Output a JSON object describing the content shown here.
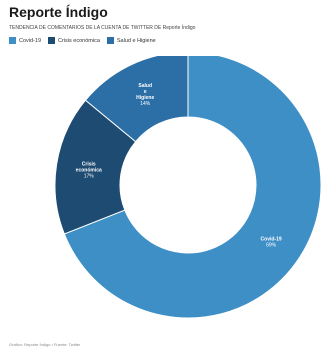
{
  "header": {
    "title": "Reporte Índigo",
    "subtitle": "TENDENCIA DE COMENTARIOS DE LA CUENTA DE TWITTER DE Reporte Índigo"
  },
  "colors": {
    "covid": "#3d8fc6",
    "crisis": "#1d4b72",
    "salud": "#2c6fa6"
  },
  "chart_data": {
    "type": "pie",
    "donut": true,
    "title": "Reporte Índigo",
    "subtitle": "TENDENCIA DE COMENTARIOS DE LA CUENTA DE TWITTER DE Reporte Índigo",
    "legend_position": "top-left",
    "slices": [
      {
        "label": "Covid-19",
        "value": 69,
        "value_label": "69%",
        "color": "#3d8fc6"
      },
      {
        "label": "Crisis económica",
        "value": 17,
        "value_label": "17%",
        "color": "#1d4b72"
      },
      {
        "label": "Salud e Higiene",
        "value": 14,
        "value_label": "14%",
        "color": "#2c6fa6"
      }
    ]
  },
  "source": "Gráfico: Reporte Índigo • Fuente: Twitter"
}
